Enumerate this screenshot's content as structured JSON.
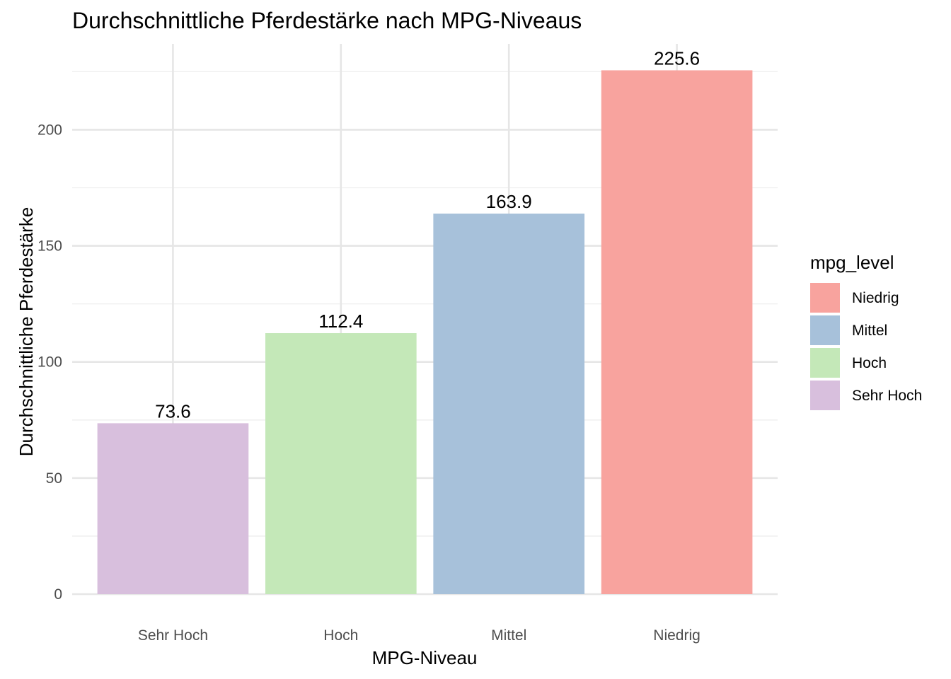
{
  "chart_data": {
    "type": "bar",
    "title": "Durchschnittliche Pferdestärke nach MPG-Niveaus",
    "xlabel": "MPG-Niveau",
    "ylabel": "Durchschnittliche Pferdestärke",
    "categories": [
      "Sehr Hoch",
      "Hoch",
      "Mittel",
      "Niedrig"
    ],
    "values": [
      73.6,
      112.4,
      163.9,
      225.6
    ],
    "value_labels": [
      "73.6",
      "112.4",
      "163.9",
      "225.6"
    ],
    "colors": [
      "#D8BFDD",
      "#C4E8B8",
      "#A7C1DA",
      "#F8A39E"
    ],
    "ylim": [
      0,
      237
    ],
    "y_major_ticks": [
      0,
      50,
      100,
      150,
      200
    ],
    "y_tick_labels": [
      "0",
      "50",
      "100",
      "150",
      "200"
    ],
    "y_minor_ticks": [
      25,
      75,
      125,
      175,
      225
    ],
    "grid": true,
    "legend": {
      "title": "mpg_level",
      "position": "right",
      "items": [
        {
          "label": "Niedrig",
          "color": "#F8A39E"
        },
        {
          "label": "Mittel",
          "color": "#A7C1DA"
        },
        {
          "label": "Hoch",
          "color": "#C4E8B8"
        },
        {
          "label": "Sehr Hoch",
          "color": "#D8BFDD"
        }
      ]
    }
  }
}
